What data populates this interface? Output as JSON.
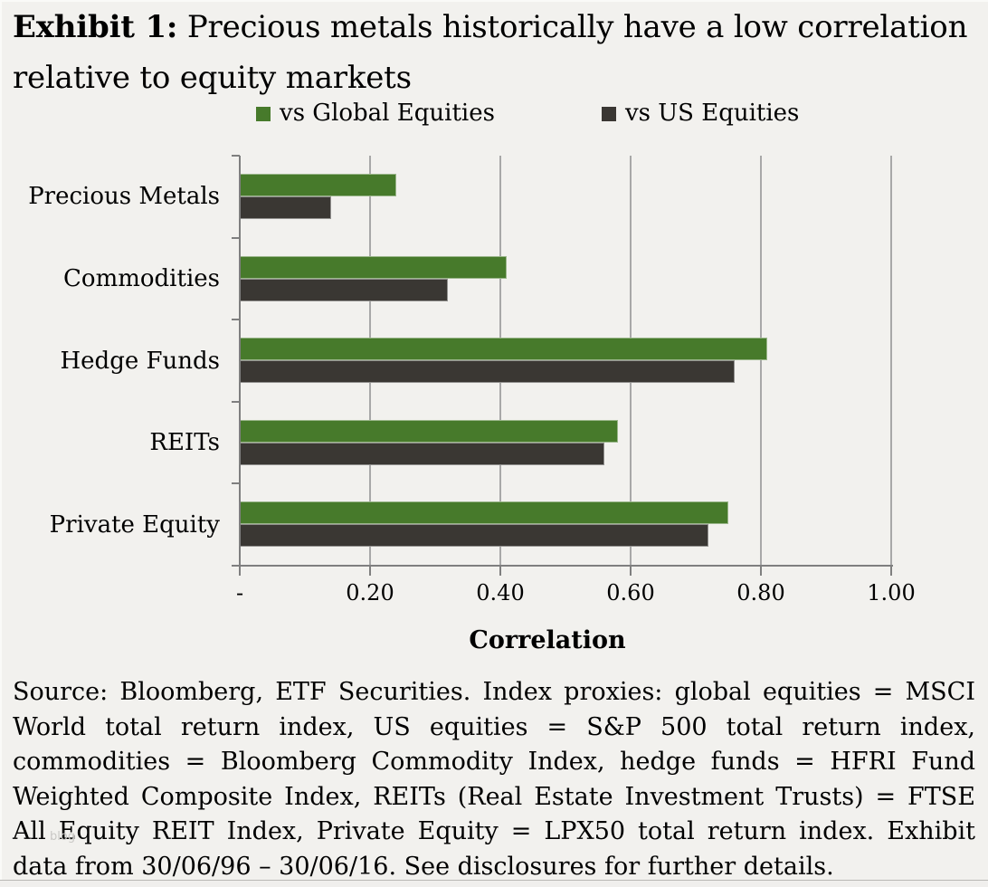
{
  "header": {
    "title_prefix": "Exhibit 1:",
    "title_line1": " Precious metals historically have a low correlation",
    "title_line2": "relative to equity markets"
  },
  "chart_data": {
    "type": "bar",
    "orientation": "horizontal",
    "title": "Exhibit 1: Precious metals historically have a low correlation relative to equity markets",
    "categories": [
      "Precious Metals",
      "Commodities",
      "Hedge Funds",
      "REITs",
      "Private Equity"
    ],
    "series": [
      {
        "name": "vs Global Equities",
        "color": "#477a2b",
        "values": [
          0.24,
          0.41,
          0.81,
          0.58,
          0.75
        ]
      },
      {
        "name": "vs US Equities",
        "color": "#3a3733",
        "values": [
          0.14,
          0.32,
          0.76,
          0.56,
          0.72
        ]
      }
    ],
    "xlabel": "Correlation",
    "xlim": [
      0,
      1.0
    ],
    "x_ticks": [
      0,
      0.2,
      0.4,
      0.6,
      0.8,
      1.0
    ],
    "x_tick_labels": [
      "-",
      "0.20",
      "0.40",
      "0.60",
      "0.80",
      "1.00"
    ],
    "grid": "vertical-gridlines-on",
    "legend_position": "top"
  },
  "source": {
    "text": "Source: Bloomberg, ETF Securities. Index proxies: global equities = MSCI World total return index, US equities = S&P 500 total return index, commodities = Bloomberg Commodity Index, hedge funds = HFRI Fund Weighted Composite Index, REITs (Real Estate Investment Trusts) = FTSE All Equity REIT Index, Private Equity = LPX50 total return index. Exhibit data from 30/06/96 – 30/06/16. See disclosures for further details."
  },
  "watermark": "blog",
  "colors": {
    "background": "#f2f1ee",
    "axis": "#7f7f7f",
    "gridline": "#a8a8a8",
    "text": "#000000"
  }
}
